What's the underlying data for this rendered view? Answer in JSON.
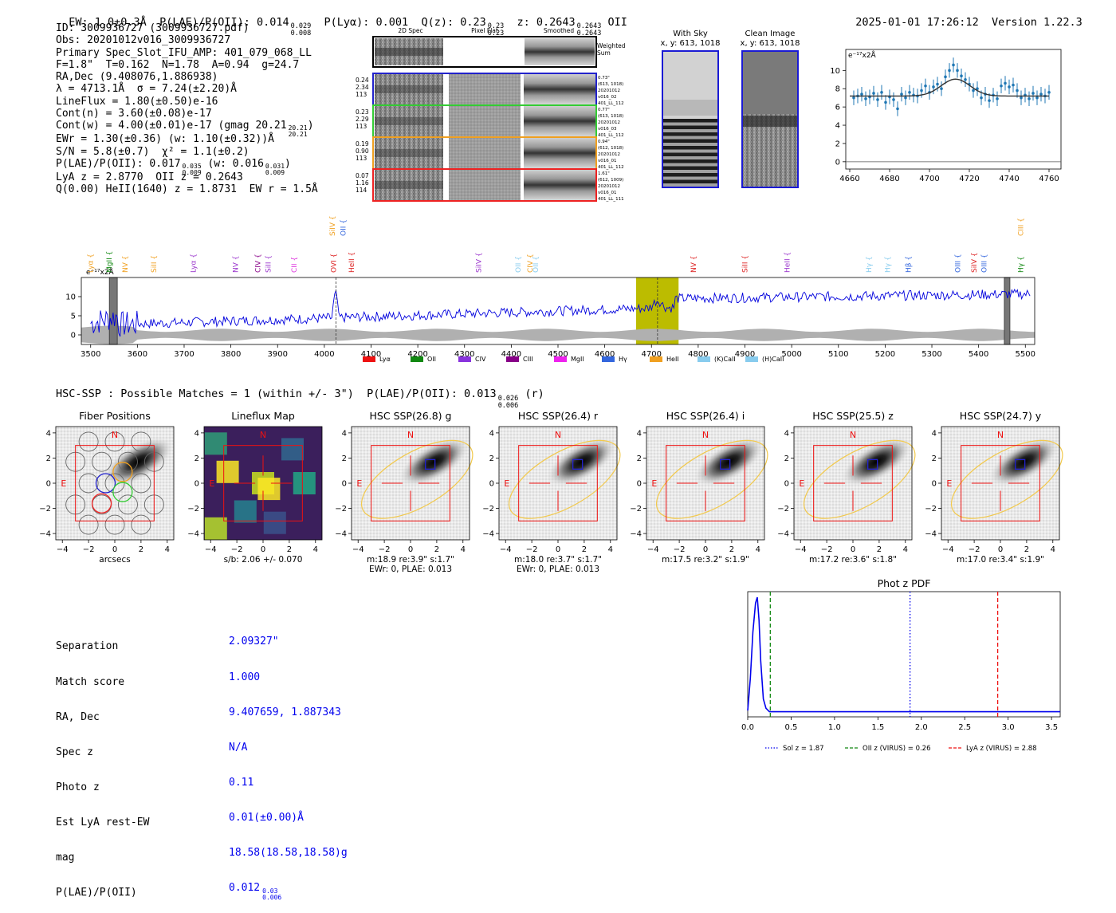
{
  "header": {
    "ew": "EW: 1.0±0.3Å",
    "plae": "P(LAE)/P(OII): 0.014",
    "plae_hi": "0.029",
    "plae_lo": "0.008",
    "plya": "P(Lyα): 0.001",
    "qz": "Q(z): 0.23",
    "qz_hi": "0.23",
    "qz_lo": "0.23",
    "z": "z: 0.2643",
    "z_hi": "0.2643",
    "z_lo": "0.2643",
    "z_line": "OII",
    "timestamp": "2025-01-01 17:26:12",
    "version": "Version 1.22.3"
  },
  "info": {
    "lines": [
      "ID: 3009936727 (3009936727.pdf)",
      "Obs: 20201012v016_3009936727",
      "Primary Spec_Slot_IFU_AMP: 401_079_068_LL",
      "F=1.8\"  T=0.162  N=1.78  A=0.94  g=24.7",
      "RA,Dec (9.408076,1.886938)",
      "λ = 4713.1Å  σ = 7.24(±2.20)Å",
      "LineFlux = 1.80(±0.50)e-16",
      "Cont(n) = 3.60(±0.08)e-17",
      "Cont(w) = 4.00(±0.01)e-17 (gmag 20.21",
      "EWr = 1.30(±0.36) (w: 1.10(±0.32))Å",
      "S/N = 5.8(±0.7)  χ² = 1.1(±0.2)",
      "P(LAE)/P(OII): 0.017",
      "LyA z = 2.8770  OII z = 0.2643",
      "Q(0.00) HeII(1640) z = 1.8731  EW r = 1.5Å"
    ],
    "gmag_hi": "20.21",
    "gmag_lo": "20.21",
    "plae_w": "(w: 0.016",
    "plae_hi": "0.035",
    "plae_lo": "0.009",
    "plae_w_hi": "0.031",
    "plae_w_lo": "0.009"
  },
  "cutouts": {
    "columns": [
      "2D Spec",
      "Pixel Flat",
      "Smoothed"
    ],
    "weighted_label": "Weighted Sum",
    "rows": [
      {
        "vals": [
          "0.24",
          "2.34",
          "113"
        ],
        "color": "#2222cc",
        "notes": [
          "0.73\"",
          "(613, 1018)",
          "20201012",
          "v016_02",
          "401_LL_112"
        ]
      },
      {
        "vals": [
          "0.23",
          "2.29",
          "113"
        ],
        "color": "#33cc33",
        "notes": [
          "0.77\"",
          "(613, 1018)",
          "20201012",
          "v016_03",
          "401_LL_112"
        ]
      },
      {
        "vals": [
          "0.19",
          "0.90",
          "113"
        ],
        "color": "#f0a020",
        "notes": [
          "0.94\"",
          "(612, 1018)",
          "20201012",
          "v016_01",
          "401_LL_112"
        ]
      },
      {
        "vals": [
          "0.07",
          "1.16",
          "114"
        ],
        "color": "#ee2222",
        "notes": [
          "1.61\"",
          "(612, 1009)",
          "20201012",
          "v016_01",
          "401_LL_111"
        ]
      }
    ]
  },
  "sky": {
    "with_sky_title": "With Sky",
    "clean_title": "Clean Image",
    "coords": "x, y: 613, 1018"
  },
  "line_fit": {
    "scale_label": "e⁻¹⁷x2Å",
    "xticks": [
      4660,
      4680,
      4700,
      4720,
      4740,
      4760
    ],
    "yticks": [
      0,
      2,
      4,
      6,
      8,
      10
    ],
    "xlim": [
      4658,
      4766
    ],
    "ylim": [
      -0.8,
      12.3
    ],
    "model": {
      "continuum": 7.2,
      "amplitude": 1.85,
      "center": 4713.1,
      "sigma": 7.24
    },
    "points": [
      [
        4662,
        7.0,
        0.8
      ],
      [
        4664,
        7.2,
        0.8
      ],
      [
        4666,
        7.4,
        0.8
      ],
      [
        4668,
        6.9,
        0.8
      ],
      [
        4670,
        7.1,
        0.8
      ],
      [
        4672,
        7.5,
        0.8
      ],
      [
        4674,
        6.8,
        0.8
      ],
      [
        4676,
        7.6,
        0.8
      ],
      [
        4678,
        6.5,
        0.8
      ],
      [
        4680,
        7.1,
        0.8
      ],
      [
        4682,
        6.8,
        0.8
      ],
      [
        4684,
        5.8,
        0.8
      ],
      [
        4686,
        7.4,
        0.8
      ],
      [
        4688,
        7.0,
        0.8
      ],
      [
        4690,
        7.6,
        0.8
      ],
      [
        4692,
        7.3,
        0.8
      ],
      [
        4694,
        7.2,
        0.8
      ],
      [
        4696,
        7.8,
        0.8
      ],
      [
        4698,
        8.3,
        0.8
      ],
      [
        4700,
        7.6,
        0.8
      ],
      [
        4702,
        8.2,
        0.8
      ],
      [
        4704,
        8.5,
        0.8
      ],
      [
        4706,
        8.0,
        0.8
      ],
      [
        4708,
        9.3,
        0.8
      ],
      [
        4710,
        10.0,
        0.8
      ],
      [
        4712,
        10.6,
        0.8
      ],
      [
        4714,
        10.0,
        0.8
      ],
      [
        4716,
        9.4,
        0.8
      ],
      [
        4718,
        9.0,
        0.8
      ],
      [
        4720,
        8.5,
        0.8
      ],
      [
        4722,
        7.8,
        0.8
      ],
      [
        4724,
        8.0,
        0.8
      ],
      [
        4726,
        7.0,
        0.8
      ],
      [
        4728,
        7.4,
        0.8
      ],
      [
        4730,
        6.7,
        0.8
      ],
      [
        4732,
        7.3,
        0.8
      ],
      [
        4734,
        6.9,
        0.8
      ],
      [
        4736,
        8.3,
        0.8
      ],
      [
        4738,
        8.6,
        0.8
      ],
      [
        4740,
        8.2,
        0.8
      ],
      [
        4742,
        8.4,
        0.8
      ],
      [
        4744,
        7.8,
        0.8
      ],
      [
        4746,
        7.0,
        0.8
      ],
      [
        4748,
        7.3,
        0.8
      ],
      [
        4750,
        6.9,
        0.8
      ],
      [
        4752,
        7.5,
        0.8
      ],
      [
        4754,
        7.0,
        0.8
      ],
      [
        4756,
        7.4,
        0.8
      ],
      [
        4758,
        7.2,
        0.8
      ],
      [
        4760,
        7.6,
        0.8
      ]
    ]
  },
  "full_spectrum": {
    "scale_label": "e⁻¹⁷x2Å",
    "xlim": [
      3480,
      5520
    ],
    "ylim": [
      -2.5,
      15
    ],
    "xticks": [
      3500,
      3600,
      3700,
      3800,
      3900,
      4000,
      4100,
      4200,
      4300,
      4400,
      4500,
      4600,
      4700,
      4800,
      4900,
      5000,
      5100,
      5200,
      5300,
      5400,
      5500
    ],
    "yticks": [
      0,
      5,
      10
    ],
    "highlight": [
      4667,
      4758
    ],
    "line_center": 4713,
    "hatched": [
      [
        3540,
        3557
      ],
      [
        5455,
        5467
      ]
    ],
    "line_marker": 4025,
    "lines": [
      {
        "name": "Lyα",
        "x": 3500,
        "color": "#f0a020",
        "tier": 1
      },
      {
        "name": "MgII",
        "x": 3540,
        "color": "#118811",
        "tier": 1
      },
      {
        "name": "NV",
        "x": 3574,
        "color": "#f0a020",
        "tier": 1
      },
      {
        "name": "SiII",
        "x": 3635,
        "color": "#f0a020",
        "tier": 1
      },
      {
        "name": "Lyα",
        "x": 3720,
        "color": "#9933cc",
        "tier": 1
      },
      {
        "name": "NV",
        "x": 3810,
        "color": "#9933cc",
        "tier": 1
      },
      {
        "name": "CIV",
        "x": 3858,
        "color": "#880088",
        "tier": 1
      },
      {
        "name": "SiII",
        "x": 3880,
        "color": "#9933cc",
        "tier": 1
      },
      {
        "name": "CII",
        "x": 3935,
        "color": "#dd33dd",
        "tier": 1
      },
      {
        "name": "SiIV",
        "x": 4017,
        "color": "#f0a020",
        "tier": 0
      },
      {
        "name": "OII",
        "x": 4040,
        "color": "#3366dd",
        "tier": 0
      },
      {
        "name": "OVI",
        "x": 4020,
        "color": "#dd2222",
        "tier": 1
      },
      {
        "name": "HeII",
        "x": 4058,
        "color": "#dd2222",
        "tier": 1
      },
      {
        "name": "SiIV",
        "x": 4330,
        "color": "#9933cc",
        "tier": 1
      },
      {
        "name": "OII",
        "x": 4415,
        "color": "#88ccee",
        "tier": 1
      },
      {
        "name": "CIV",
        "x": 4440,
        "color": "#f0a020",
        "tier": 1
      },
      {
        "name": "OII",
        "x": 4452,
        "color": "#88ccee",
        "tier": 1
      },
      {
        "name": "NV",
        "x": 4790,
        "color": "#dd2222",
        "tier": 1
      },
      {
        "name": "SiII",
        "x": 4900,
        "color": "#dd2222",
        "tier": 1
      },
      {
        "name": "HeII",
        "x": 4990,
        "color": "#9933cc",
        "tier": 1
      },
      {
        "name": "Hγ",
        "x": 5165,
        "color": "#88ccee",
        "tier": 1
      },
      {
        "name": "Hγ",
        "x": 5205,
        "color": "#88ccee",
        "tier": 1
      },
      {
        "name": "Hβ",
        "x": 5250,
        "color": "#3366dd",
        "tier": 1
      },
      {
        "name": "OIII",
        "x": 5355,
        "color": "#3366dd",
        "tier": 1
      },
      {
        "name": "SiIV",
        "x": 5390,
        "color": "#dd2222",
        "tier": 1
      },
      {
        "name": "OIII",
        "x": 5412,
        "color": "#3366dd",
        "tier": 1
      },
      {
        "name": "CIII",
        "x": 5490,
        "color": "#f0a020",
        "tier": 0
      },
      {
        "name": "Hγ",
        "x": 5490,
        "color": "#118811",
        "tier": 1
      }
    ],
    "legend": [
      {
        "name": "Lyα",
        "color": "#ee1111"
      },
      {
        "name": "OII",
        "color": "#118811"
      },
      {
        "name": "CIV",
        "color": "#8833dd"
      },
      {
        "name": "CIII",
        "color": "#880088"
      },
      {
        "name": "MgII",
        "color": "#ee22ee"
      },
      {
        "name": "Hγ",
        "color": "#3366dd"
      },
      {
        "name": "HeII",
        "color": "#f0a020"
      },
      {
        "name": "(K)CaII",
        "color": "#88ccee"
      },
      {
        "name": "(H)CaII",
        "color": "#88ccee"
      }
    ]
  },
  "hsc": {
    "summary": "HSC-SSP : Possible Matches = 1 (within +/- 3\")  P(LAE)/P(OII): 0.013",
    "summary_hi": "0.026",
    "summary_lo": "0.006",
    "summary_band": "(r)",
    "panels": [
      {
        "title": "Fiber Positions",
        "kind": "fiber",
        "sub1": "arcsecs",
        "sub2": ""
      },
      {
        "title": "Lineflux Map",
        "kind": "flux",
        "sub1": "s/b: 2.06 +/- 0.070",
        "sub2": ""
      },
      {
        "title": "HSC SSP(26.8) g",
        "kind": "gal",
        "sub1": "m:18.9  re:3.9\"  s:1.7\"",
        "sub2": "EWr: 0, PLAE: 0.013"
      },
      {
        "title": "HSC SSP(26.4) r",
        "kind": "gal",
        "sub1": "m:18.0  re:3.7\"  s:1.7\"",
        "sub2": "EWr: 0, PLAE: 0.013"
      },
      {
        "title": "HSC SSP(26.4) i",
        "kind": "gal",
        "sub1": "m:17.5  re:3.2\"  s:1.9\"",
        "sub2": ""
      },
      {
        "title": "HSC SSP(25.5) z",
        "kind": "gal",
        "sub1": "m:17.2  re:3.6\"  s:1.8\"",
        "sub2": ""
      },
      {
        "title": "HSC SSP(24.7) y",
        "kind": "gal",
        "sub1": "m:17.0  re:3.4\"  s:1.9\"",
        "sub2": ""
      }
    ],
    "ticks": [
      -4,
      -2,
      0,
      2,
      4
    ],
    "north": "N",
    "east": "E"
  },
  "match": {
    "labels": [
      "Separation",
      "Match score",
      "RA, Dec",
      "Spec z",
      "Photo z",
      "Est LyA rest-EW",
      "mag",
      "P(LAE)/P(OII)"
    ],
    "values": [
      "2.09327\"",
      "1.000",
      "9.407659, 1.887343",
      "N/A",
      "0.11",
      "0.01(±0.00)Å",
      "18.58(18.58,18.58)g",
      "0.012"
    ],
    "plae_hi": "0.03",
    "plae_lo": "0.006"
  },
  "chart_data": {
    "type": "line",
    "title": "Phot z PDF",
    "xlim": [
      0,
      3.6
    ],
    "xticks": [
      0.0,
      0.5,
      1.0,
      1.5,
      2.0,
      2.5,
      3.0,
      3.5
    ],
    "pdf": [
      [
        0.0,
        0.02
      ],
      [
        0.03,
        0.3
      ],
      [
        0.06,
        0.7
      ],
      [
        0.09,
        0.95
      ],
      [
        0.11,
        1.0
      ],
      [
        0.13,
        0.8
      ],
      [
        0.15,
        0.45
      ],
      [
        0.18,
        0.12
      ],
      [
        0.21,
        0.04
      ],
      [
        0.25,
        0.01
      ],
      [
        0.3,
        0.01
      ],
      [
        3.6,
        0.01
      ]
    ],
    "markers": [
      {
        "name": "Sol z = 1.87",
        "x": 1.87,
        "color": "#0000ee",
        "style": "dotted"
      },
      {
        "name": "OII z (VIRUS) = 0.26",
        "x": 0.26,
        "color": "#118811",
        "style": "dashed"
      },
      {
        "name": "LyA z (VIRUS) = 2.88",
        "x": 2.88,
        "color": "#ee1111",
        "style": "dashed"
      }
    ]
  }
}
